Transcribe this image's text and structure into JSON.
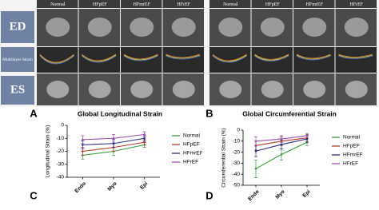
{
  "column_headers": [
    [
      "Normal",
      "HFpEF",
      "HFmrEF",
      "HFrEF"
    ],
    [
      "Normal",
      "HFpEF",
      "HFmrEF",
      "HFrEF"
    ]
  ],
  "row_labels": [
    "ED",
    "Multilayer Strain",
    "ES"
  ],
  "panel_labels": [
    "A",
    "B",
    "C",
    "D"
  ],
  "chart_data": [
    {
      "type": "line",
      "title": "Global Longitudinal Strain",
      "y_label": "Longitudinal Strain (%)",
      "categories": [
        "Endo",
        "Myo",
        "Epi"
      ],
      "ylim": [
        -40,
        0
      ],
      "yticks": [
        0,
        -10,
        -20,
        -30,
        -40
      ],
      "series": [
        {
          "name": "Normal",
          "color": "#3a9e3a",
          "values": [
            -23,
            -20,
            -15
          ],
          "errors": [
            3,
            3,
            2
          ]
        },
        {
          "name": "HFpEF",
          "color": "#c0392b",
          "values": [
            -20,
            -17,
            -13
          ],
          "errors": [
            3,
            3,
            2
          ]
        },
        {
          "name": "HFmrEF",
          "color": "#2c2c8c",
          "values": [
            -15,
            -14,
            -10
          ],
          "errors": [
            3,
            3,
            2
          ]
        },
        {
          "name": "HFrEF",
          "color": "#9b4fb0",
          "values": [
            -11,
            -10,
            -7
          ],
          "errors": [
            3,
            3,
            2
          ]
        }
      ]
    },
    {
      "type": "line",
      "title": "Global Circumferential Strain",
      "y_label": "Circumferential Strain (%)",
      "categories": [
        "Endo",
        "Myo",
        "Epi"
      ],
      "ylim": [
        -50,
        0
      ],
      "yticks": [
        0,
        -10,
        -20,
        -30,
        -40,
        -50
      ],
      "series": [
        {
          "name": "Normal",
          "color": "#3a9e3a",
          "values": [
            -35,
            -22,
            -11
          ],
          "errors": [
            8,
            5,
            3
          ]
        },
        {
          "name": "HFpEF",
          "color": "#c0392b",
          "values": [
            -14,
            -10,
            -7
          ],
          "errors": [
            4,
            4,
            3
          ]
        },
        {
          "name": "HFmrEF",
          "color": "#2c2c8c",
          "values": [
            -19,
            -13,
            -8
          ],
          "errors": [
            5,
            4,
            3
          ]
        },
        {
          "name": "HFrEF",
          "color": "#9b4fb0",
          "values": [
            -10,
            -8,
            -5
          ],
          "errors": [
            4,
            3,
            2
          ]
        }
      ]
    }
  ]
}
